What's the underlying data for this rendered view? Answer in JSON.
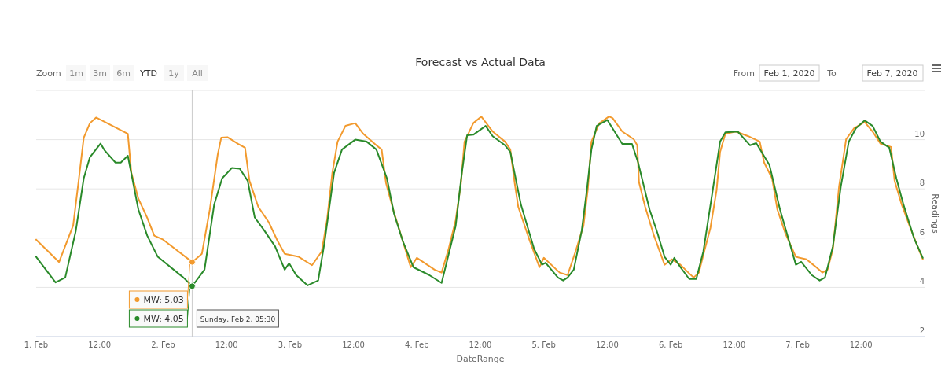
{
  "chart_data": {
    "type": "line",
    "title": "Forecast vs Actual Data",
    "xlabel": "DateRange",
    "ylabel": "Readings",
    "xlim": [
      "2020-02-01T00:00",
      "2020-02-08T00:00"
    ],
    "xticks": [
      {
        "value": "2020-02-01T00:00",
        "label": "1. Feb"
      },
      {
        "value": "2020-02-01T12:00",
        "label": "12:00"
      },
      {
        "value": "2020-02-02T00:00",
        "label": "2. Feb"
      },
      {
        "value": "2020-02-02T12:00",
        "label": "12:00"
      },
      {
        "value": "2020-02-03T00:00",
        "label": "3. Feb"
      },
      {
        "value": "2020-02-03T12:00",
        "label": "12:00"
      },
      {
        "value": "2020-02-04T00:00",
        "label": "4. Feb"
      },
      {
        "value": "2020-02-04T12:00",
        "label": "12:00"
      },
      {
        "value": "2020-02-05T00:00",
        "label": "5. Feb"
      },
      {
        "value": "2020-02-05T12:00",
        "label": "12:00"
      },
      {
        "value": "2020-02-06T00:00",
        "label": "6. Feb"
      },
      {
        "value": "2020-02-06T12:00",
        "label": "12:00"
      },
      {
        "value": "2020-02-07T00:00",
        "label": "7. Feb"
      },
      {
        "value": "2020-02-07T12:00",
        "label": "12:00"
      }
    ],
    "ylim": [
      2,
      12
    ],
    "yticks": [
      2,
      4,
      6,
      8,
      10,
      {
        "value": 12,
        "label": null
      }
    ],
    "grid": "y",
    "marker": "none",
    "line_style": "solid",
    "ref_lines": [
      {
        "axis": "x",
        "value": "2020-02-02T05:30",
        "color": "#cccccc"
      }
    ],
    "series": [
      {
        "color": "#f29a2e",
        "x": [
          "2020-02-01T00:00",
          "2020-02-01T04:20",
          "2020-02-01T07:00",
          "2020-02-01T08:00",
          "2020-02-01T09:00",
          "2020-02-01T10:10",
          "2020-02-01T11:20",
          "2020-02-01T17:20",
          "2020-02-01T18:00",
          "2020-02-01T19:20",
          "2020-02-01T21:00",
          "2020-02-01T22:20",
          "2020-02-02T00:00",
          "2020-02-02T05:30",
          "2020-02-02T07:20",
          "2020-02-02T08:50",
          "2020-02-02T10:20",
          "2020-02-02T11:00",
          "2020-02-02T12:10",
          "2020-02-02T14:10",
          "2020-02-02T15:30",
          "2020-02-02T16:20",
          "2020-02-02T18:00",
          "2020-02-02T20:00",
          "2020-02-02T21:40",
          "2020-02-02T23:00",
          "2020-02-03T01:40",
          "2020-02-03T04:10",
          "2020-02-03T06:00",
          "2020-02-03T07:00",
          "2020-02-03T08:00",
          "2020-02-03T09:00",
          "2020-02-03T10:30",
          "2020-02-03T12:20",
          "2020-02-03T13:50",
          "2020-02-03T16:20",
          "2020-02-03T17:20",
          "2020-02-03T18:10",
          "2020-02-03T19:40",
          "2020-02-03T21:20",
          "2020-02-03T22:50",
          "2020-02-04T00:00",
          "2020-02-04T03:20",
          "2020-02-04T04:40",
          "2020-02-04T06:00",
          "2020-02-04T07:20",
          "2020-02-04T08:20",
          "2020-02-04T09:00",
          "2020-02-04T10:40",
          "2020-02-04T12:10",
          "2020-02-04T14:20",
          "2020-02-04T16:40",
          "2020-02-04T17:40",
          "2020-02-04T18:30",
          "2020-02-04T19:10",
          "2020-02-04T21:10",
          "2020-02-04T23:10",
          "2020-02-05T00:00",
          "2020-02-05T03:00",
          "2020-02-05T04:30",
          "2020-02-05T06:00",
          "2020-02-05T07:30",
          "2020-02-05T08:20",
          "2020-02-05T09:00",
          "2020-02-05T10:30",
          "2020-02-05T12:20",
          "2020-02-05T13:00",
          "2020-02-05T14:50",
          "2020-02-05T17:00",
          "2020-02-05T17:40",
          "2020-02-05T18:00",
          "2020-02-05T19:10",
          "2020-02-05T20:50",
          "2020-02-05T22:50",
          "2020-02-06T00:10",
          "2020-02-06T01:50",
          "2020-02-06T03:20",
          "2020-02-06T04:20",
          "2020-02-06T05:20",
          "2020-02-06T06:20",
          "2020-02-06T07:30",
          "2020-02-06T08:40",
          "2020-02-06T09:20",
          "2020-02-06T10:20",
          "2020-02-06T12:20",
          "2020-02-06T14:40",
          "2020-02-06T16:50",
          "2020-02-06T17:40",
          "2020-02-06T19:10",
          "2020-02-06T20:10",
          "2020-02-06T21:40",
          "2020-02-06T23:40",
          "2020-02-07T01:40",
          "2020-02-07T03:10",
          "2020-02-07T04:40",
          "2020-02-07T05:40",
          "2020-02-07T06:40",
          "2020-02-07T07:50",
          "2020-02-07T09:10",
          "2020-02-07T10:40",
          "2020-02-07T12:40",
          "2020-02-07T14:10",
          "2020-02-07T15:40",
          "2020-02-07T17:40",
          "2020-02-07T18:20",
          "2020-02-07T19:40",
          "2020-02-07T21:10",
          "2020-02-07T22:40",
          "2020-02-07T23:40"
        ],
        "values": [
          5.94,
          5.03,
          6.52,
          8.27,
          10.08,
          10.67,
          10.9,
          10.24,
          8.65,
          7.6,
          6.83,
          6.1,
          5.94,
          5.03,
          5.36,
          7.16,
          9.4,
          10.08,
          10.1,
          9.83,
          9.67,
          8.33,
          7.27,
          6.64,
          5.88,
          5.36,
          5.24,
          4.9,
          5.46,
          6.73,
          8.65,
          9.92,
          10.56,
          10.67,
          10.24,
          9.77,
          9.6,
          8.23,
          7.05,
          5.88,
          4.82,
          5.2,
          4.72,
          4.6,
          5.56,
          6.73,
          8.23,
          9.92,
          10.67,
          10.94,
          10.33,
          9.92,
          9.6,
          8.23,
          7.27,
          6.0,
          4.82,
          5.2,
          4.6,
          4.5,
          5.46,
          6.5,
          8.0,
          9.92,
          10.67,
          10.94,
          10.88,
          10.33,
          10.02,
          9.77,
          8.27,
          7.27,
          6.1,
          4.92,
          5.14,
          4.92,
          4.6,
          4.4,
          4.6,
          5.46,
          6.41,
          7.94,
          9.5,
          10.24,
          10.33,
          10.14,
          9.92,
          9.07,
          8.43,
          7.16,
          6.2,
          5.24,
          5.14,
          4.88,
          4.6,
          4.72,
          5.56,
          8.1,
          10.02,
          10.46,
          10.72,
          10.33,
          9.84,
          9.7,
          8.33,
          7.37,
          6.5,
          5.67,
          5.14
        ]
      },
      {
        "color": "#2a8a2a",
        "x": [
          "2020-02-01T00:00",
          "2020-02-01T03:40",
          "2020-02-01T05:30",
          "2020-02-01T07:30",
          "2020-02-01T09:00",
          "2020-02-01T10:10",
          "2020-02-01T12:10",
          "2020-02-01T13:00",
          "2020-02-01T15:00",
          "2020-02-01T16:00",
          "2020-02-01T17:20",
          "2020-02-01T19:20",
          "2020-02-01T21:00",
          "2020-02-01T23:00",
          "2020-02-02T03:50",
          "2020-02-02T05:30",
          "2020-02-02T07:50",
          "2020-02-02T09:40",
          "2020-02-02T11:10",
          "2020-02-02T13:00",
          "2020-02-02T14:30",
          "2020-02-02T16:00",
          "2020-02-02T17:20",
          "2020-02-02T19:10",
          "2020-02-02T21:10",
          "2020-02-02T23:00",
          "2020-02-02T23:50",
          "2020-02-03T01:10",
          "2020-02-03T03:20",
          "2020-02-03T05:20",
          "2020-02-03T06:30",
          "2020-02-03T08:20",
          "2020-02-03T09:50",
          "2020-02-03T12:20",
          "2020-02-03T14:30",
          "2020-02-03T16:20",
          "2020-02-03T18:20",
          "2020-02-03T19:40",
          "2020-02-03T21:20",
          "2020-02-03T23:20",
          "2020-02-04T02:20",
          "2020-02-04T04:40",
          "2020-02-04T07:20",
          "2020-02-04T08:30",
          "2020-02-04T09:30",
          "2020-02-04T10:40",
          "2020-02-04T13:00",
          "2020-02-04T14:20",
          "2020-02-04T16:40",
          "2020-02-04T17:40",
          "2020-02-04T19:40",
          "2020-02-04T22:10",
          "2020-02-04T23:40",
          "2020-02-05T00:20",
          "2020-02-05T02:40",
          "2020-02-05T03:40",
          "2020-02-05T04:30",
          "2020-02-05T05:40",
          "2020-02-05T07:10",
          "2020-02-05T08:10",
          "2020-02-05T09:00",
          "2020-02-05T10:00",
          "2020-02-05T12:00",
          "2020-02-05T13:00",
          "2020-02-05T14:50",
          "2020-02-05T16:40",
          "2020-02-05T17:50",
          "2020-02-05T20:00",
          "2020-02-05T21:30",
          "2020-02-05T22:50",
          "2020-02-06T00:00",
          "2020-02-06T00:40",
          "2020-02-06T01:50",
          "2020-02-06T03:30",
          "2020-02-06T04:50",
          "2020-02-06T06:10",
          "2020-02-06T07:50",
          "2020-02-06T09:20",
          "2020-02-06T10:20",
          "2020-02-06T12:40",
          "2020-02-06T15:00",
          "2020-02-06T16:10",
          "2020-02-06T18:40",
          "2020-02-06T20:40",
          "2020-02-06T23:40",
          "2020-02-07T00:40",
          "2020-02-07T02:40",
          "2020-02-07T04:10",
          "2020-02-07T05:10",
          "2020-02-07T06:40",
          "2020-02-07T08:10",
          "2020-02-07T09:40",
          "2020-02-07T11:00",
          "2020-02-07T12:40",
          "2020-02-07T14:10",
          "2020-02-07T15:40",
          "2020-02-07T17:20",
          "2020-02-07T18:40",
          "2020-02-07T20:00",
          "2020-02-07T22:00",
          "2020-02-07T23:40"
        ],
        "values": [
          5.24,
          4.2,
          4.4,
          6.3,
          8.43,
          9.29,
          9.84,
          9.55,
          9.07,
          9.07,
          9.35,
          7.16,
          6.1,
          5.24,
          4.4,
          4.05,
          4.72,
          7.37,
          8.43,
          8.85,
          8.82,
          8.33,
          6.84,
          6.3,
          5.67,
          4.72,
          4.98,
          4.5,
          4.08,
          4.28,
          5.78,
          8.65,
          9.6,
          10.0,
          9.92,
          9.6,
          8.43,
          7.0,
          5.88,
          4.82,
          4.5,
          4.18,
          6.5,
          8.65,
          10.18,
          10.2,
          10.56,
          10.14,
          9.77,
          9.5,
          7.37,
          5.56,
          4.92,
          5.0,
          4.4,
          4.28,
          4.4,
          4.72,
          6.3,
          8.0,
          9.6,
          10.56,
          10.8,
          10.46,
          9.83,
          9.83,
          9.07,
          7.16,
          6.2,
          5.24,
          4.92,
          5.2,
          4.82,
          4.34,
          4.34,
          5.46,
          7.79,
          9.92,
          10.3,
          10.33,
          9.77,
          9.86,
          8.97,
          7.16,
          4.92,
          5.04,
          4.5,
          4.28,
          4.4,
          5.67,
          8.1,
          9.92,
          10.46,
          10.78,
          10.56,
          9.92,
          9.67,
          8.43,
          7.37,
          6.0,
          5.2
        ]
      }
    ],
    "annotations": [
      "Zoom",
      "1m",
      "3m",
      "6m",
      "YTD",
      "1y",
      "All",
      "From",
      "Feb 1, 2020",
      "To",
      "Feb 7, 2020",
      {
        "text": "MW: 5.03",
        "x": "2020-02-02T05:30",
        "y": 5.03
      },
      {
        "text": "MW: 4.05",
        "x": "2020-02-02T05:30",
        "y": 4.05
      },
      {
        "text": "Sunday, Feb 2, 05:30",
        "x": "2020-02-02T05:30"
      }
    ]
  }
}
